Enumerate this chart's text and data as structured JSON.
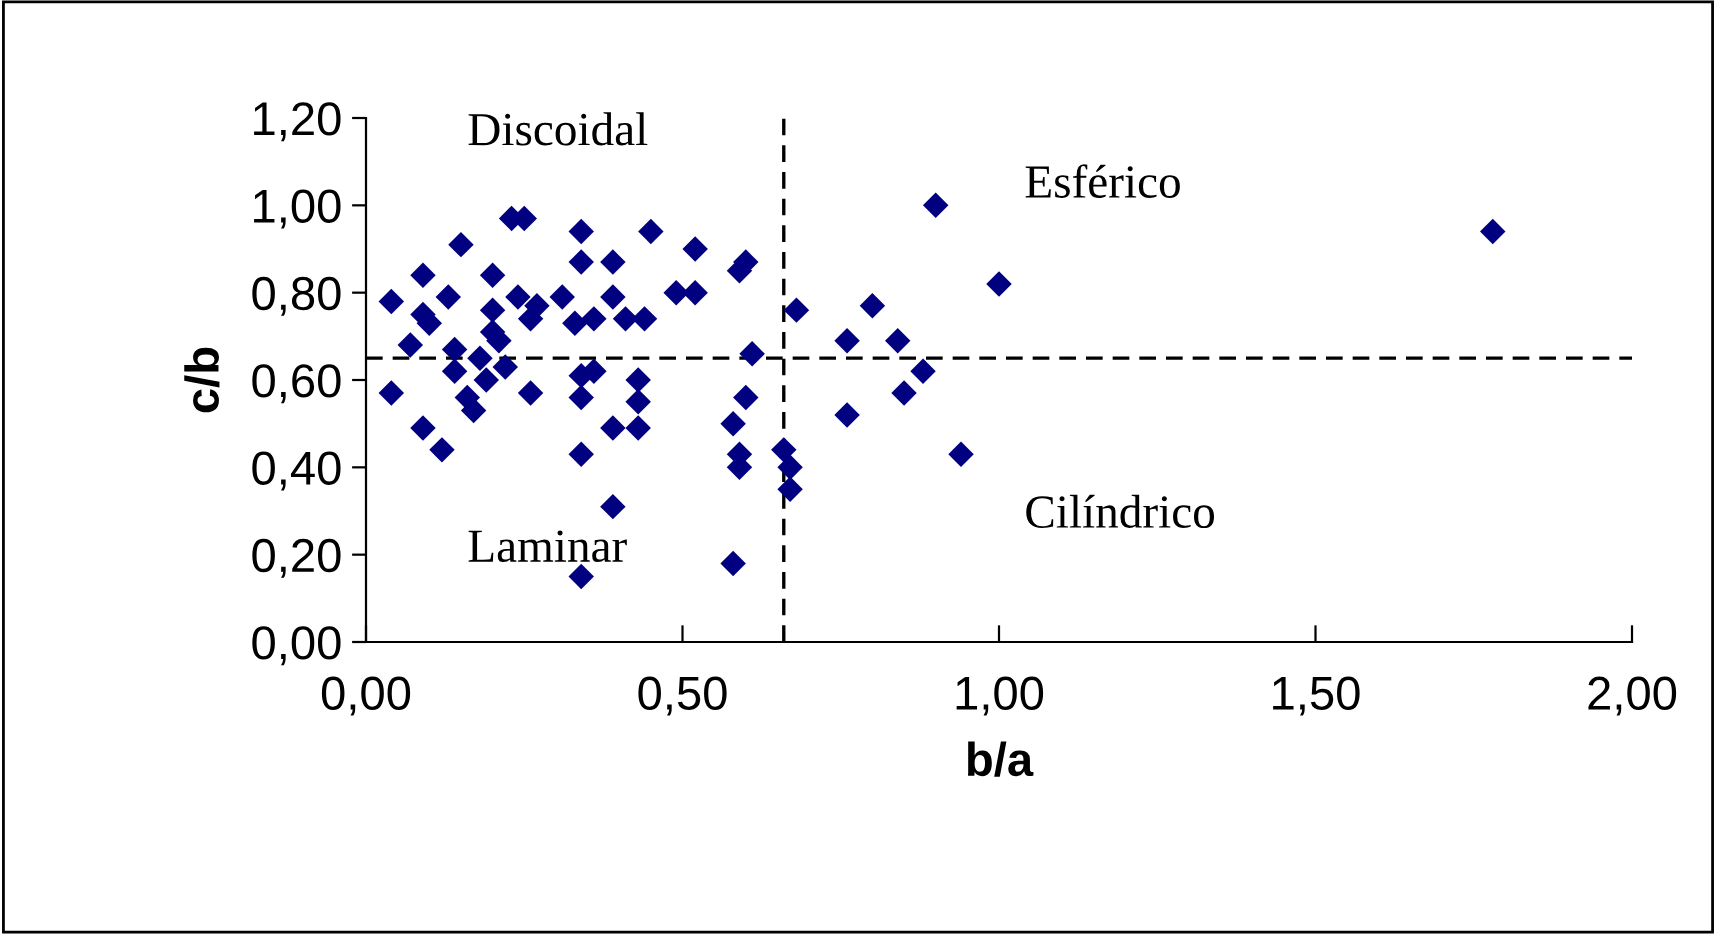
{
  "chart_data": {
    "type": "scatter",
    "xlabel": "b/a",
    "ylabel": "c/b",
    "xlim": [
      0,
      2
    ],
    "ylim": [
      0,
      1.2
    ],
    "xticks": [
      {
        "value": 0,
        "label": "0,00"
      },
      {
        "value": 0.5,
        "label": "0,50"
      },
      {
        "value": 1,
        "label": "1,00"
      },
      {
        "value": 1.5,
        "label": "1,50"
      },
      {
        "value": 2,
        "label": "2,00"
      }
    ],
    "yticks": [
      {
        "value": 0,
        "label": "0,00"
      },
      {
        "value": 0.2,
        "label": "0,20"
      },
      {
        "value": 0.4,
        "label": "0,40"
      },
      {
        "value": 0.6,
        "label": "0,60"
      },
      {
        "value": 0.8,
        "label": "0,80"
      },
      {
        "value": 1.0,
        "label": "1,00"
      },
      {
        "value": 1.2,
        "label": "1,20"
      }
    ],
    "marker": "diamond",
    "grid": false,
    "legend": false,
    "series": [
      {
        "color": "#000080",
        "x": [
          0.04,
          0.04,
          0.07,
          0.09,
          0.09,
          0.1,
          0.09,
          0.12,
          0.13,
          0.15,
          0.14,
          0.14,
          0.16,
          0.17,
          0.18,
          0.19,
          0.2,
          0.2,
          0.2,
          0.21,
          0.22,
          0.23,
          0.25,
          0.24,
          0.26,
          0.27,
          0.26,
          0.31,
          0.34,
          0.33,
          0.34,
          0.34,
          0.34,
          0.36,
          0.36,
          0.34,
          0.34,
          0.39,
          0.39,
          0.39,
          0.39,
          0.41,
          0.43,
          0.43,
          0.44,
          0.45,
          0.49,
          0.52,
          0.52,
          0.43,
          0.58,
          0.58,
          0.59,
          0.59,
          0.59,
          0.6,
          0.6,
          0.61,
          0.66,
          0.67,
          0.67,
          0.68,
          0.76,
          0.76,
          0.8,
          0.84,
          0.85,
          0.88,
          0.9,
          0.94,
          1.0,
          1.78
        ],
        "values": [
          0.78,
          0.57,
          0.68,
          0.84,
          0.75,
          0.73,
          0.49,
          0.44,
          0.79,
          0.91,
          0.67,
          0.62,
          0.56,
          0.53,
          0.65,
          0.6,
          0.71,
          0.76,
          0.84,
          0.69,
          0.63,
          0.97,
          0.97,
          0.79,
          0.74,
          0.77,
          0.57,
          0.79,
          0.56,
          0.73,
          0.94,
          0.87,
          0.61,
          0.74,
          0.62,
          0.43,
          0.15,
          0.31,
          0.49,
          0.79,
          0.87,
          0.74,
          0.49,
          0.6,
          0.74,
          0.94,
          0.8,
          0.9,
          0.8,
          0.55,
          0.5,
          0.18,
          0.4,
          0.43,
          0.85,
          0.87,
          0.56,
          0.66,
          0.44,
          0.4,
          0.35,
          0.76,
          0.69,
          0.52,
          0.77,
          0.69,
          0.57,
          0.62,
          1.0,
          0.43,
          0.82,
          0.94
        ]
      }
    ],
    "ref_lines": [
      {
        "axis": "x",
        "value": 0.66,
        "color": "#000000",
        "line_style": "dashed"
      },
      {
        "axis": "y",
        "value": 0.65,
        "color": "#000000",
        "line_style": "dashed"
      }
    ],
    "annotations": [
      "Discoidal",
      "Esférico",
      "Laminar",
      "Cilíndrico"
    ]
  }
}
